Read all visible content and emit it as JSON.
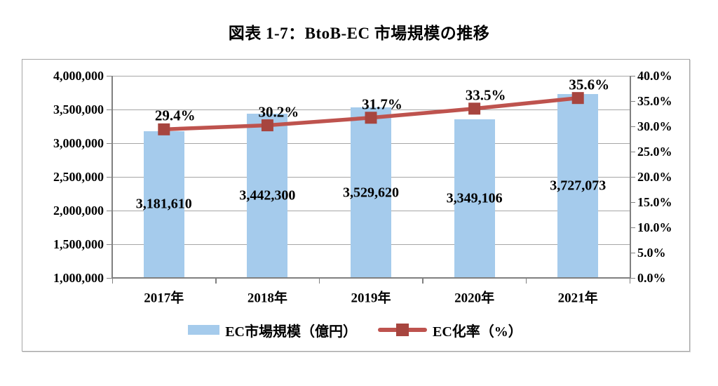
{
  "title": "図表 1-7：BtoB-EC 市場規模の推移",
  "colors": {
    "bar": "#A5CBEC",
    "line": "#BE534E",
    "marker": "#A7453F",
    "grid": "#A6A6A6",
    "axis": "#808080",
    "text": "#000000",
    "frame_border": "#A6A6A6",
    "background": "#FFFFFF"
  },
  "chart_data": {
    "type": "combo (bar + line)",
    "title": "図表 1-7：BtoB-EC 市場規模の推移",
    "categories": [
      "2017年",
      "2018年",
      "2019年",
      "2020年",
      "2021年"
    ],
    "series": [
      {
        "name": "EC市場規模（億円）",
        "type": "bar",
        "axis": "left",
        "values": [
          3181610,
          3442300,
          3529620,
          3349106,
          3727073
        ],
        "data_labels": [
          "3,181,610",
          "3,442,300",
          "3,529,620",
          "3,349,106",
          "3,727,073"
        ]
      },
      {
        "name": "EC化率（%）",
        "type": "line",
        "axis": "right",
        "values": [
          29.4,
          30.2,
          31.7,
          33.5,
          35.6
        ],
        "data_labels": [
          "29.4%",
          "30.2%",
          "31.7%",
          "33.5%",
          "35.6%"
        ]
      }
    ],
    "left_axis": {
      "min": 1000000,
      "max": 4000000,
      "step": 500000,
      "tick_labels": [
        "4,000,000",
        "3,500,000",
        "3,000,000",
        "2,500,000",
        "2,000,000",
        "1,500,000",
        "1,000,000"
      ]
    },
    "right_axis": {
      "min": 0,
      "max": 40,
      "step": 5,
      "tick_labels": [
        "40.0%",
        "35.0%",
        "30.0%",
        "25.0%",
        "20.0%",
        "15.0%",
        "10.0%",
        "5.0%",
        "0.0%"
      ]
    },
    "grid": "horizontal gridlines on (left-axis intervals)",
    "legend_position": "bottom",
    "legend": [
      {
        "swatch": "bar",
        "label": "EC市場規模（億円）"
      },
      {
        "swatch": "line-marker",
        "label": "EC化率（%）"
      }
    ]
  }
}
